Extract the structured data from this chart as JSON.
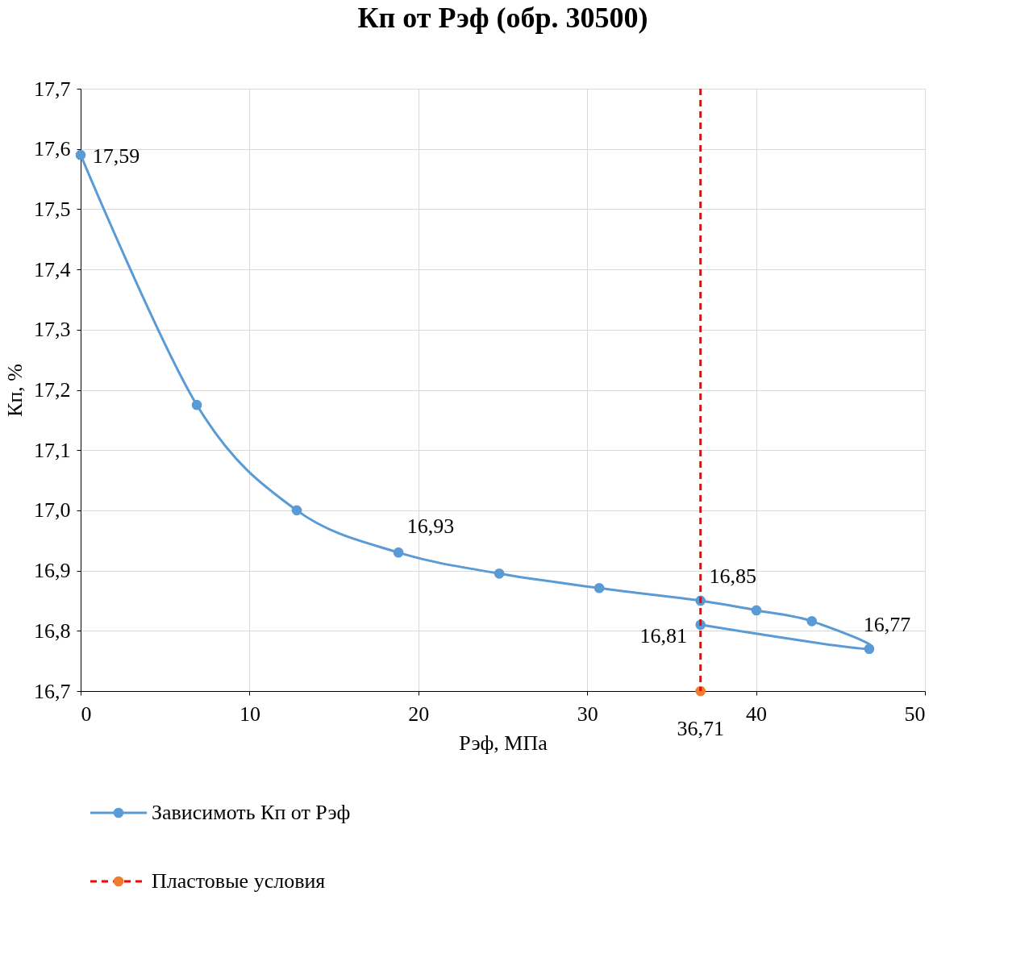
{
  "chart_data": {
    "type": "line",
    "title": "Кп от Рэф (обр. 30500)",
    "xlabel": "Рэф, МПа",
    "ylabel": "Кп, %",
    "xlim": [
      0,
      50
    ],
    "xticks": [
      0,
      10,
      20,
      30,
      40,
      50
    ],
    "ylim": [
      16.7,
      17.7
    ],
    "yticks": [
      {
        "value": 16.7,
        "label": "16,7"
      },
      {
        "value": 16.8,
        "label": "16,8"
      },
      {
        "value": 16.9,
        "label": "16,9"
      },
      {
        "value": 17.0,
        "label": "17,0"
      },
      {
        "value": 17.1,
        "label": "17,1"
      },
      {
        "value": 17.2,
        "label": "17,2"
      },
      {
        "value": 17.3,
        "label": "17,3"
      },
      {
        "value": 17.4,
        "label": "17,4"
      },
      {
        "value": 17.5,
        "label": "17,5"
      },
      {
        "value": 17.6,
        "label": "17,6"
      },
      {
        "value": 17.7,
        "label": "17,7"
      }
    ],
    "grid": true,
    "legend": "bottom",
    "marker": "circle",
    "line_style": "solid",
    "series": [
      {
        "name": "Зависимоть Кп от Рэф",
        "color": "#5b9bd5",
        "x": [
          0,
          6.88,
          12.8,
          18.82,
          24.79,
          30.71,
          36.71,
          40.02,
          43.3,
          46.7,
          36.71
        ],
        "values": [
          17.59,
          17.175,
          17.0,
          16.93,
          16.895,
          16.871,
          16.85,
          16.834,
          16.816,
          16.77,
          16.81
        ],
        "value_labels": [
          "17,59",
          null,
          null,
          "16,93",
          null,
          null,
          "16,85",
          null,
          null,
          "16,77",
          "16,81"
        ]
      },
      {
        "name": "Пластовые условия",
        "type": "scatter",
        "color": "#ed7d31",
        "x": [
          36.71
        ],
        "values": [
          16.7
        ]
      }
    ],
    "ref_lines": [
      {
        "axis": "x",
        "value": 36.71,
        "label": "36,71",
        "color": "#ff0000",
        "line_style": "dashed"
      }
    ]
  }
}
